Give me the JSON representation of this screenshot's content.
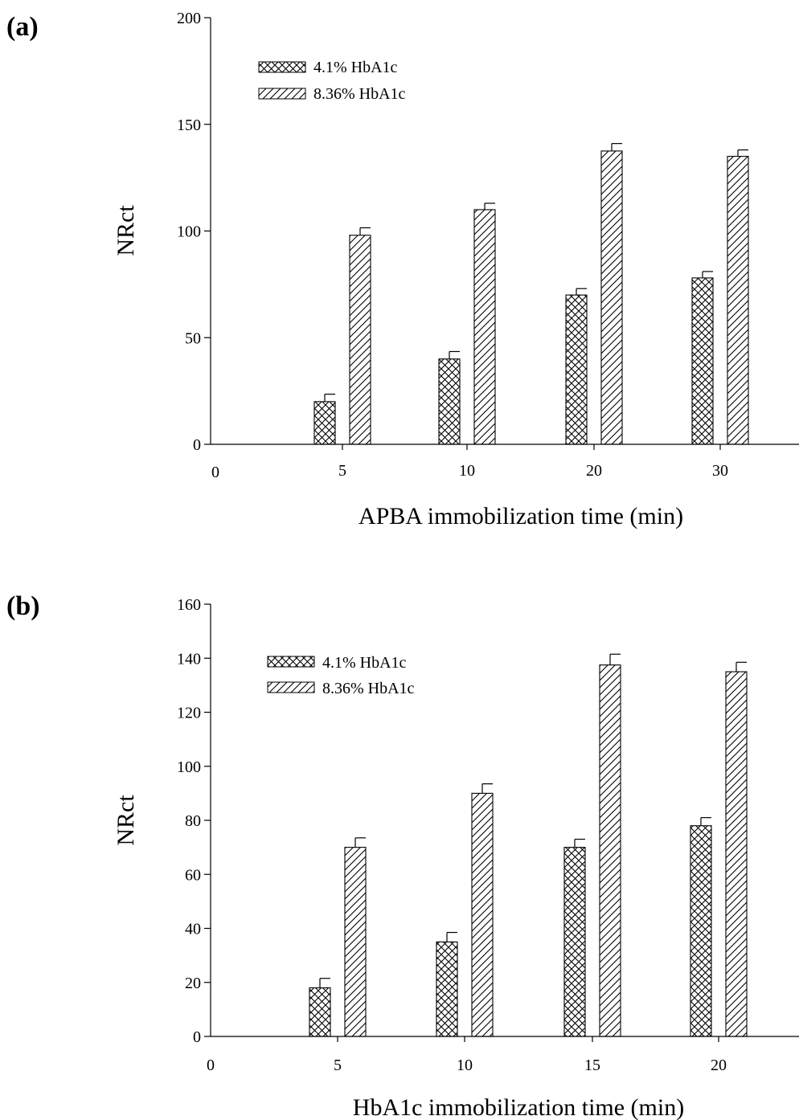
{
  "chart_data": [
    {
      "panel_label": "(a)",
      "type": "bar",
      "x_origin_label": "0",
      "categories": [
        "5",
        "10",
        "20",
        "30"
      ],
      "series": [
        {
          "name": "4.1% HbA1c",
          "pattern": "crosshatch",
          "values": [
            20,
            40,
            70,
            78
          ],
          "errors": [
            3.5,
            3.5,
            3,
            3
          ]
        },
        {
          "name": "8.36% HbA1c",
          "pattern": "diagonal",
          "values": [
            98,
            110,
            137.5,
            135
          ],
          "errors": [
            3.5,
            3,
            3.5,
            3
          ]
        }
      ],
      "xlabel": "APBA immobilization time (min)",
      "ylabel": "NRct",
      "ylim": [
        0,
        200
      ],
      "yticks": [
        0,
        50,
        100,
        150,
        200
      ],
      "legend_position": "top-left",
      "grid": false
    },
    {
      "panel_label": "(b)",
      "type": "bar",
      "x_origin_label": "0",
      "categories": [
        "5",
        "10",
        "15",
        "20"
      ],
      "series": [
        {
          "name": "4.1% HbA1c",
          "pattern": "crosshatch",
          "values": [
            18,
            35,
            70,
            78
          ],
          "errors": [
            3.5,
            3.5,
            3,
            3
          ]
        },
        {
          "name": "8.36% HbA1c",
          "pattern": "diagonal",
          "values": [
            70,
            90,
            137.5,
            135
          ],
          "errors": [
            3.5,
            3.5,
            4,
            3.5
          ]
        }
      ],
      "xlabel": "HbA1c immobilization time (min)",
      "ylabel": "NRct",
      "ylim": [
        0,
        160
      ],
      "yticks": [
        0,
        20,
        40,
        60,
        80,
        100,
        120,
        140,
        160
      ],
      "legend_position": "top-left",
      "grid": false
    }
  ]
}
